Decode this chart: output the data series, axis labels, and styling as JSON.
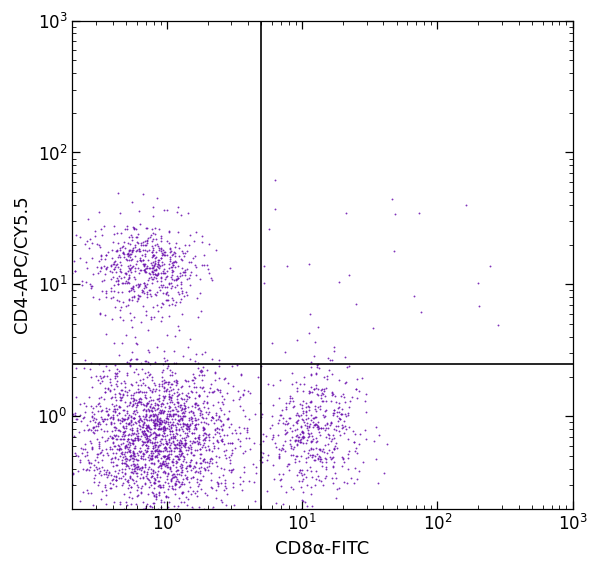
{
  "xlabel": "CD8α-FITC",
  "ylabel": "CD4-APC/CY5.5",
  "xlim": [
    0.2,
    1000
  ],
  "ylim": [
    0.2,
    1000
  ],
  "dot_color": "#6A0DAD",
  "dot_size": 1.8,
  "dot_alpha": 0.85,
  "gate_x": 5.0,
  "gate_y": 2.5,
  "xlabel_fontsize": 13,
  "ylabel_fontsize": 13,
  "tick_fontsize": 12,
  "clusters": {
    "bottom_left": {
      "n": 2000,
      "x_log_center": -0.08,
      "x_log_spread": 0.3,
      "y_log_center": -0.15,
      "y_log_spread": 0.28
    },
    "top_left": {
      "n": 600,
      "x_log_center": -0.15,
      "x_log_spread": 0.22,
      "y_log_center": 1.13,
      "y_log_spread": 0.18
    },
    "bottom_right": {
      "n": 500,
      "x_log_center": 1.1,
      "x_log_spread": 0.18,
      "y_log_center": -0.1,
      "y_log_spread": 0.25
    },
    "scattered_upper": {
      "n": 25,
      "x_log_min": 0.7,
      "x_log_max": 2.5,
      "y_log_min": 0.5,
      "y_log_max": 1.8
    }
  }
}
